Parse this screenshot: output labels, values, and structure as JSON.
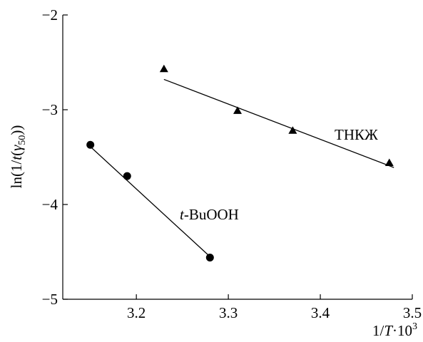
{
  "chart_data": {
    "type": "scatter",
    "xlabel": "1/T·10³",
    "ylabel": "ln(1/t(γ₅₀))",
    "xlim": [
      3.12,
      3.5
    ],
    "ylim": [
      -5,
      -2
    ],
    "xticks": [
      3.2,
      3.3,
      3.4,
      3.5
    ],
    "xtick_labels": [
      "3.2",
      "3.3",
      "3.4",
      "3.5"
    ],
    "yticks": [
      -2,
      -3,
      -4,
      -5
    ],
    "ytick_labels": [
      "−2",
      "−3",
      "−4",
      "−5"
    ],
    "grid": false,
    "series": [
      {
        "name": "t-BuOOH",
        "marker": "circle",
        "color": "#000000",
        "x": [
          3.15,
          3.19,
          3.28
        ],
        "y": [
          -3.37,
          -3.7,
          -4.56
        ],
        "fit_line": {
          "x": [
            3.15,
            3.28
          ],
          "y": [
            -3.39,
            -4.55
          ]
        }
      },
      {
        "name": "ТНКЖ",
        "marker": "triangle",
        "color": "#000000",
        "x": [
          3.23,
          3.31,
          3.37,
          3.475
        ],
        "y": [
          -2.57,
          -3.01,
          -3.22,
          -3.56
        ],
        "fit_line": {
          "x": [
            3.23,
            3.48
          ],
          "y": [
            -2.68,
            -3.61
          ]
        }
      }
    ]
  }
}
